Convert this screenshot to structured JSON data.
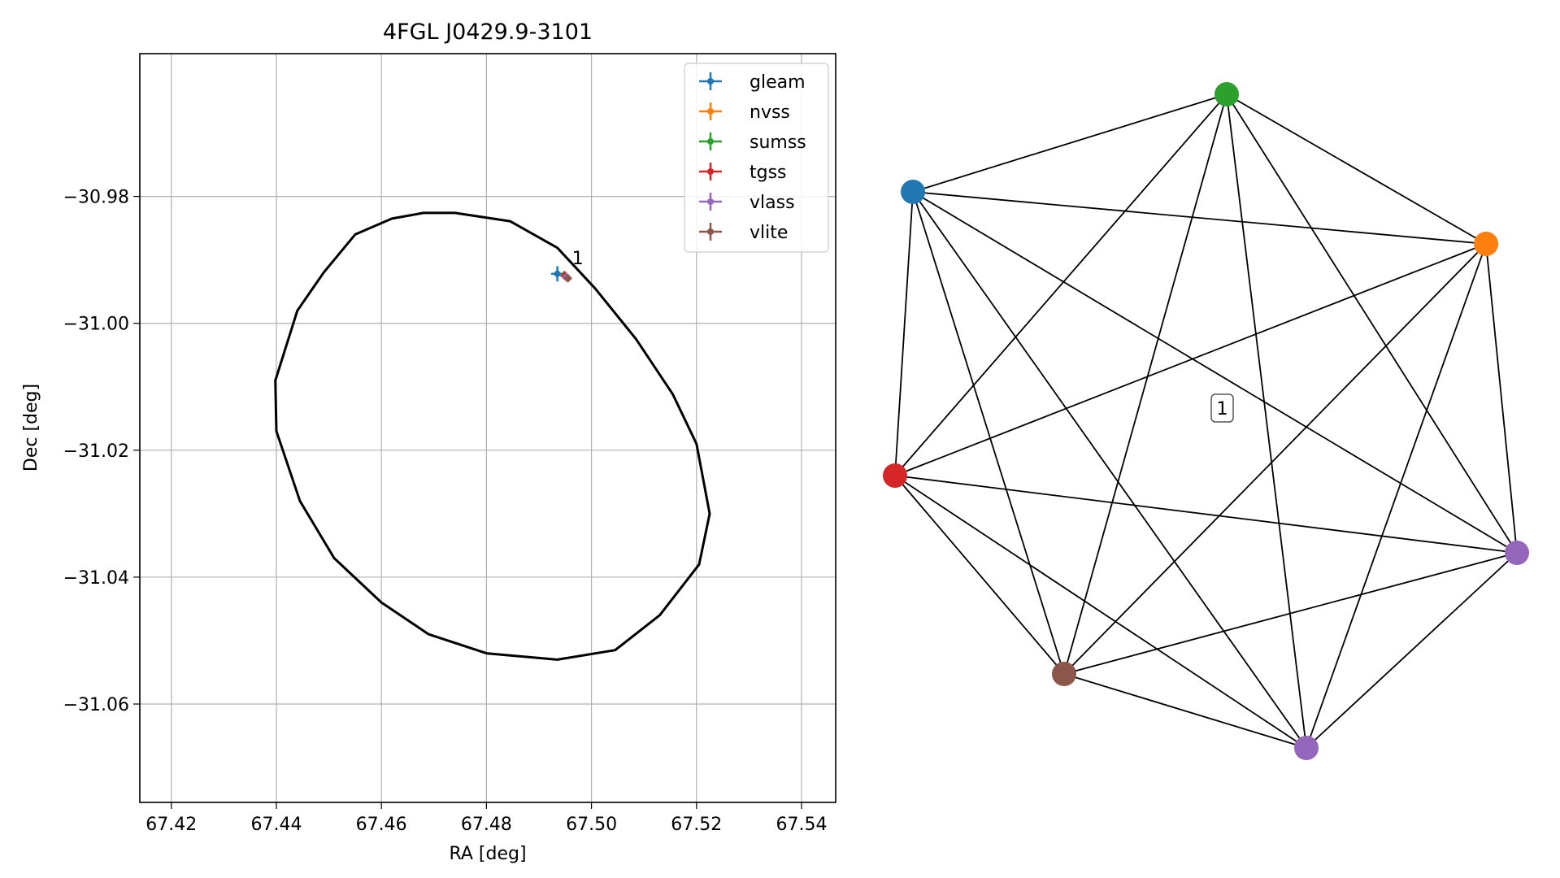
{
  "chart_data": [
    {
      "type": "scatter",
      "title": "4FGL J0429.9-3101",
      "xlabel": "RA [deg]",
      "ylabel": "Dec [deg]",
      "xlim": [
        67.414,
        67.5465
      ],
      "ylim": [
        -31.0755,
        -30.9575
      ],
      "xticks": [
        67.42,
        67.44,
        67.46,
        67.48,
        67.5,
        67.52,
        67.54
      ],
      "xtick_labels": [
        "67.42",
        "67.44",
        "67.46",
        "67.48",
        "67.50",
        "67.52",
        "67.54"
      ],
      "yticks": [
        -30.98,
        -31.0,
        -31.02,
        -31.04,
        -31.06
      ],
      "ytick_labels": [
        "−30.98",
        "−31.00",
        "−31.02",
        "−31.04",
        "−31.06"
      ],
      "grid": true,
      "legend_position": "top-right",
      "series": [
        {
          "name": "gleam",
          "color": "#1f77b4",
          "x": [
            67.4935
          ],
          "y": [
            -30.9922
          ],
          "xerr": 0.0012,
          "yerr": 0.0012
        },
        {
          "name": "nvss",
          "color": "#ff7f0e",
          "x": [
            67.495
          ],
          "y": [
            -30.9925
          ],
          "xerr": 0.0003,
          "yerr": 0.0003
        },
        {
          "name": "sumss",
          "color": "#2ca02c",
          "x": [
            67.4948
          ],
          "y": [
            -30.9924
          ],
          "xerr": 0.0004,
          "yerr": 0.0004
        },
        {
          "name": "tgss",
          "color": "#d62728",
          "x": [
            67.4949
          ],
          "y": [
            -30.9925
          ],
          "xerr": 0.0004,
          "yerr": 0.0004
        },
        {
          "name": "vlass",
          "color": "#9467bd",
          "x": [
            67.4952
          ],
          "y": [
            -30.9927
          ],
          "xerr": 0.0002,
          "yerr": 0.0002
        },
        {
          "name": "vlite",
          "color": "#8c564b",
          "x": [
            67.4955
          ],
          "y": [
            -30.9929
          ],
          "xerr": 0.0002,
          "yerr": 0.0002
        }
      ],
      "annotations": [
        {
          "text": "1",
          "x": 67.4963,
          "y": -30.9907
        }
      ],
      "ellipse": {
        "color": "#000000",
        "points": [
          [
            67.474,
            -30.9826
          ],
          [
            67.4845,
            -30.9839
          ],
          [
            67.4935,
            -30.9881
          ],
          [
            67.5007,
            -30.9945
          ],
          [
            67.5085,
            -31.0025
          ],
          [
            67.5155,
            -31.0112
          ],
          [
            67.52,
            -31.019
          ],
          [
            67.5225,
            -31.03
          ],
          [
            67.5205,
            -31.038
          ],
          [
            67.513,
            -31.046
          ],
          [
            67.5045,
            -31.0515
          ],
          [
            67.4935,
            -31.053
          ],
          [
            67.48,
            -31.052
          ],
          [
            67.469,
            -31.049
          ],
          [
            67.46,
            -31.044
          ],
          [
            67.451,
            -31.037
          ],
          [
            67.4445,
            -31.028
          ],
          [
            67.44,
            -31.017
          ],
          [
            67.4398,
            -31.009
          ],
          [
            67.444,
            -30.998
          ],
          [
            67.449,
            -30.992
          ],
          [
            67.455,
            -30.986
          ],
          [
            67.462,
            -30.9835
          ],
          [
            67.468,
            -30.9826
          ]
        ]
      }
    },
    {
      "type": "network",
      "center_label": "1",
      "nodes": [
        {
          "id": "gleam",
          "color": "#1f77b4"
        },
        {
          "id": "sumss",
          "color": "#2ca02c"
        },
        {
          "id": "nvss",
          "color": "#ff7f0e"
        },
        {
          "id": "vlass",
          "color": "#9467bd"
        },
        {
          "id": "vlass-2",
          "color": "#9467bd"
        },
        {
          "id": "vlite",
          "color": "#8c564b"
        },
        {
          "id": "tgss",
          "color": "#d62728"
        }
      ],
      "edges": "complete"
    }
  ]
}
